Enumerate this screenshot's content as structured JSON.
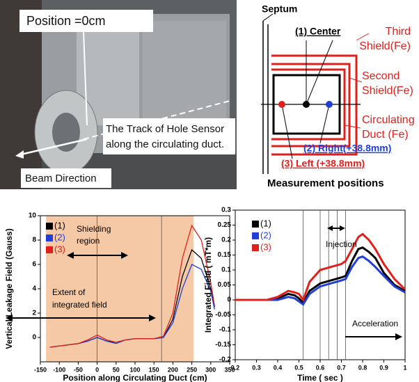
{
  "photo": {
    "position_label": "Position =0cm",
    "track_label": [
      "The Track of Hole Sensor",
      "along the circulating duct."
    ],
    "beam_label": "Beam Direction"
  },
  "diagram": {
    "septum": "Septum",
    "center": "(1) Center",
    "third_shield": [
      "Third",
      "Shield(Fe)"
    ],
    "second_shield": [
      "Second",
      "Shield(Fe)"
    ],
    "duct": [
      "Circulating",
      "Duct (Fe)"
    ],
    "right": "(2) Right(+38.8mm)",
    "left": "(3) Left (+38.8mm)",
    "caption": "Measurement positions"
  },
  "chart_data": [
    {
      "type": "line",
      "y_label": "Vertical  Leakage Field (Gauss)",
      "x_label": "Position along Circulating Duct (cm)",
      "annotations": [
        [
          "Shielding",
          "region"
        ],
        [
          "Extent of",
          "integrated field"
        ]
      ],
      "shade": {
        "range": [
          -135,
          255
        ],
        "color": "#f5c9a6"
      },
      "vlines": [
        0,
        170
      ],
      "x": [
        -125,
        -100,
        -75,
        -50,
        -25,
        0,
        25,
        50,
        75,
        100,
        125,
        150,
        175,
        200,
        225,
        250,
        275,
        300,
        310
      ],
      "series": [
        {
          "name": "(1)",
          "color": "#000000",
          "values": [
            -0.8,
            -0.7,
            -0.6,
            -0.5,
            -0.3,
            0,
            -0.3,
            -0.4,
            -0.2,
            -0.1,
            -0.1,
            -0.1,
            0,
            1.5,
            5,
            7.2,
            6.5,
            4,
            2.5
          ]
        },
        {
          "name": "(2)",
          "color": "#1f3fd6",
          "values": [
            -0.8,
            -0.7,
            -0.6,
            -0.5,
            -0.3,
            0,
            -0.3,
            -0.5,
            -0.2,
            -0.1,
            -0.1,
            -0.1,
            0,
            1.2,
            4,
            6,
            5.6,
            3.8,
            2.3
          ]
        },
        {
          "name": "(3)",
          "color": "#e0201b",
          "values": [
            -0.8,
            -0.7,
            -0.6,
            -0.5,
            -0.2,
            0.2,
            -0.2,
            -0.4,
            -0.2,
            -0.1,
            -0.1,
            -0.1,
            0.1,
            2,
            6.5,
            9.2,
            8,
            4.5,
            2.6
          ]
        }
      ],
      "xlim": [
        -150,
        350
      ],
      "xticks": [
        -150,
        -100,
        -50,
        0,
        50,
        100,
        150,
        200,
        250,
        300,
        350
      ],
      "ylim": [
        -2,
        10
      ],
      "yticks": [
        0,
        2,
        4,
        6,
        8,
        10
      ]
    },
    {
      "type": "line",
      "y_label": "Integrated Field ( mT*m)",
      "x_label": "Time ( sec )",
      "annotations": [
        [
          "Injection"
        ],
        [
          "Acceleration"
        ]
      ],
      "vlines": [
        0.52,
        0.6,
        0.64,
        0.68,
        0.72
      ],
      "x": [
        0.2,
        0.3,
        0.35,
        0.4,
        0.45,
        0.48,
        0.5,
        0.52,
        0.55,
        0.6,
        0.65,
        0.7,
        0.72,
        0.75,
        0.78,
        0.8,
        0.83,
        0.86,
        0.9,
        0.95,
        1
      ],
      "series": [
        {
          "name": "(1)",
          "color": "#000000",
          "values": [
            0,
            0,
            0,
            0.005,
            0.02,
            0.015,
            0.005,
            -0.01,
            0.03,
            0.055,
            0.065,
            0.075,
            0.08,
            0.13,
            0.17,
            0.175,
            0.16,
            0.14,
            0.09,
            0.05,
            0.03
          ]
        },
        {
          "name": "(2)",
          "color": "#1f3fd6",
          "values": [
            0,
            0,
            0,
            0,
            0.01,
            0.005,
            -0.005,
            -0.015,
            0.02,
            0.045,
            0.055,
            0.065,
            0.07,
            0.11,
            0.14,
            0.145,
            0.13,
            0.11,
            0.08,
            0.045,
            0.025
          ]
        },
        {
          "name": "(3)",
          "color": "#e0201b",
          "values": [
            0,
            0,
            0,
            0.01,
            0.03,
            0.025,
            0.02,
            0,
            0.06,
            0.1,
            0.11,
            0.12,
            0.13,
            0.17,
            0.21,
            0.22,
            0.2,
            0.17,
            0.12,
            0.07,
            0.035
          ]
        }
      ],
      "xlim": [
        0.2,
        1
      ],
      "xticks": [
        0.2,
        0.3,
        0.4,
        0.5,
        0.6,
        0.7,
        0.8,
        0.9,
        1
      ],
      "ylim": [
        -0.2,
        0.3
      ],
      "yticks": [
        -0.2,
        -0.15,
        -0.1,
        -0.05,
        0,
        0.05,
        0.1,
        0.15,
        0.2,
        0.25,
        0.3
      ]
    }
  ]
}
